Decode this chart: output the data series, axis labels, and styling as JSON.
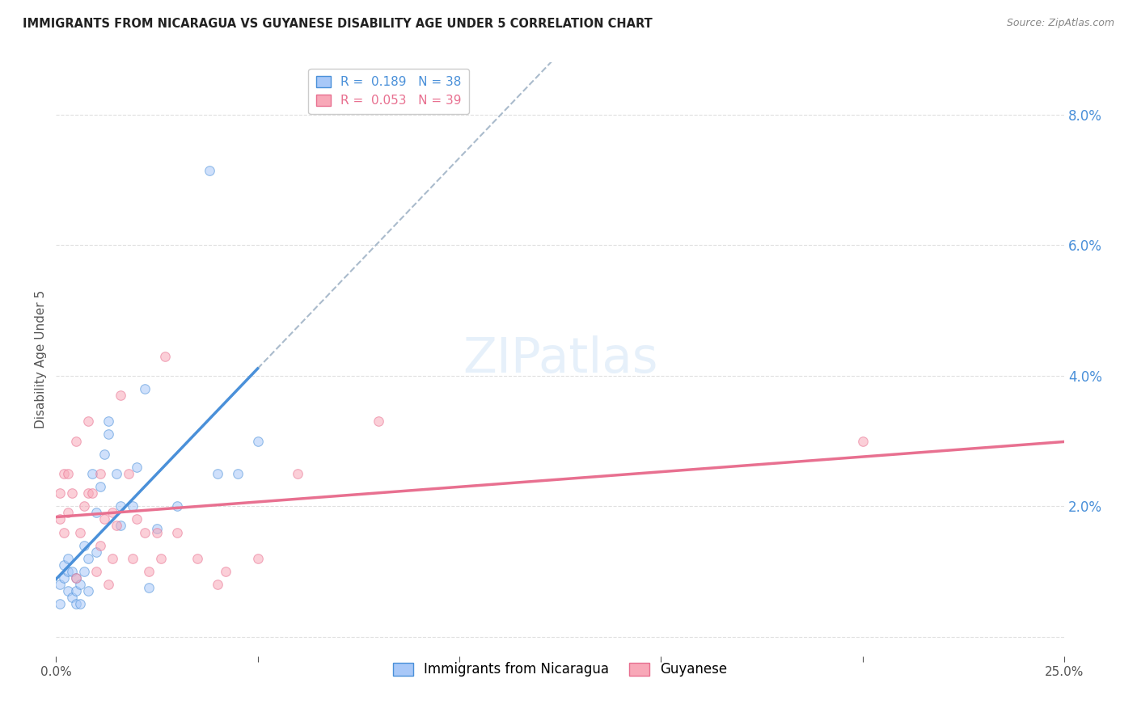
{
  "title": "IMMIGRANTS FROM NICARAGUA VS GUYANESE DISABILITY AGE UNDER 5 CORRELATION CHART",
  "source": "Source: ZipAtlas.com",
  "ylabel": "Disability Age Under 5",
  "right_yticks": [
    0.0,
    0.02,
    0.04,
    0.06,
    0.08
  ],
  "right_yticklabels": [
    "",
    "2.0%",
    "4.0%",
    "6.0%",
    "8.0%"
  ],
  "xmin": 0.0,
  "xmax": 0.25,
  "ymin": -0.003,
  "ymax": 0.088,
  "nicaragua_color": "#a8c8f8",
  "guyanese_color": "#f8a8b8",
  "nicaragua_line_color": "#4a90d9",
  "guyanese_line_color": "#e87090",
  "dashed_line_color": "#aabbcc",
  "background_color": "#ffffff",
  "grid_color": "#e0e0e0",
  "marker_size": 70,
  "marker_alpha": 0.55,
  "nicaragua_R": 0.189,
  "nicaragua_N": 38,
  "guyanese_R": 0.053,
  "guyanese_N": 39,
  "nicaragua_points_x": [
    0.001,
    0.001,
    0.002,
    0.002,
    0.003,
    0.003,
    0.003,
    0.004,
    0.004,
    0.005,
    0.005,
    0.005,
    0.006,
    0.006,
    0.007,
    0.007,
    0.008,
    0.008,
    0.009,
    0.01,
    0.01,
    0.011,
    0.012,
    0.013,
    0.013,
    0.015,
    0.016,
    0.016,
    0.019,
    0.02,
    0.022,
    0.023,
    0.025,
    0.03,
    0.038,
    0.04,
    0.045,
    0.05
  ],
  "nicaragua_points_y": [
    0.005,
    0.008,
    0.009,
    0.011,
    0.007,
    0.01,
    0.012,
    0.006,
    0.01,
    0.005,
    0.007,
    0.009,
    0.005,
    0.008,
    0.01,
    0.014,
    0.007,
    0.012,
    0.025,
    0.013,
    0.019,
    0.023,
    0.028,
    0.031,
    0.033,
    0.025,
    0.017,
    0.02,
    0.02,
    0.026,
    0.038,
    0.0075,
    0.0165,
    0.02,
    0.0715,
    0.025,
    0.025,
    0.03
  ],
  "guyanese_points_x": [
    0.001,
    0.001,
    0.002,
    0.002,
    0.003,
    0.003,
    0.004,
    0.005,
    0.005,
    0.006,
    0.007,
    0.008,
    0.008,
    0.009,
    0.01,
    0.011,
    0.011,
    0.012,
    0.013,
    0.014,
    0.014,
    0.015,
    0.016,
    0.018,
    0.019,
    0.02,
    0.022,
    0.023,
    0.025,
    0.026,
    0.027,
    0.03,
    0.035,
    0.04,
    0.042,
    0.05,
    0.06,
    0.08,
    0.2
  ],
  "guyanese_points_y": [
    0.018,
    0.022,
    0.016,
    0.025,
    0.019,
    0.025,
    0.022,
    0.009,
    0.03,
    0.016,
    0.02,
    0.022,
    0.033,
    0.022,
    0.01,
    0.014,
    0.025,
    0.018,
    0.008,
    0.012,
    0.019,
    0.017,
    0.037,
    0.025,
    0.012,
    0.018,
    0.016,
    0.01,
    0.016,
    0.012,
    0.043,
    0.016,
    0.012,
    0.008,
    0.01,
    0.012,
    0.025,
    0.033,
    0.03
  ],
  "legend1_label_R": "R = ",
  "legend1_R_val": " 0.189",
  "legend1_label_N": "   N = ",
  "legend1_N_val": "38",
  "legend2_label_R": "R = ",
  "legend2_R_val": " 0.053",
  "legend2_label_N": "   N = ",
  "legend2_N_val": "39",
  "bottom_label1": "Immigrants from Nicaragua",
  "bottom_label2": "Guyanese"
}
